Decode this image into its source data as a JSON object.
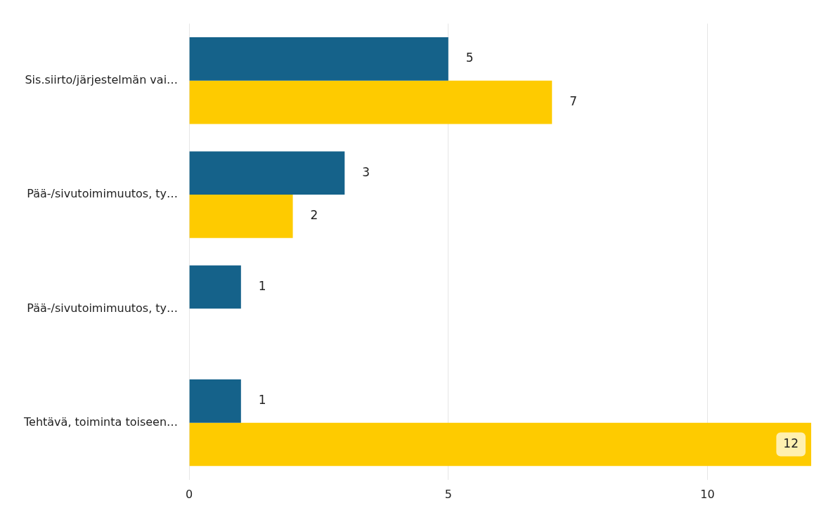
{
  "chart_data": {
    "type": "bar",
    "orientation": "horizontal",
    "categories": [
      "Sis.siirto/järjestelmän vai…",
      "Pää-/sivutoimimuutos, ty…",
      "Pää-/sivutoimimuutos, ty…",
      "Tehtävä, toiminta toiseen…"
    ],
    "series": [
      {
        "color": "#15628a",
        "values": [
          5,
          3,
          1,
          1
        ]
      },
      {
        "color": "#fecb00",
        "values": [
          7,
          2,
          null,
          12
        ]
      }
    ],
    "xlim": [
      0,
      12
    ],
    "xticks": [
      0,
      5,
      10
    ],
    "grid": "x",
    "legend": false,
    "data_labels": true
  }
}
